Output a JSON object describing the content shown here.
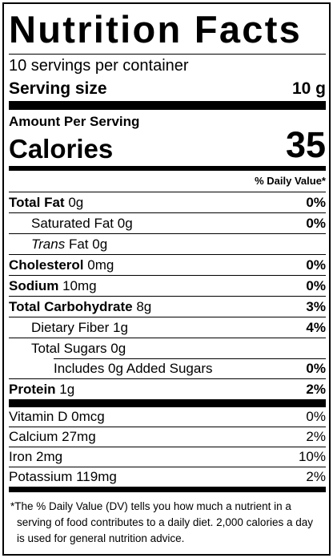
{
  "header": {
    "title": "Nutrition Facts",
    "servings": "10 servings per container",
    "serving_size_label": "Serving size",
    "serving_size": "10 g"
  },
  "calories": {
    "heading": "Amount Per Serving",
    "label": "Calories",
    "value": "35"
  },
  "dv_heading": "% Daily Value*",
  "nutrients": [
    {
      "label": "Total Fat",
      "amount": "0g",
      "dv": "0%",
      "level": 0
    },
    {
      "label": "Saturated Fat",
      "amount": "0g",
      "dv": "0%",
      "level": 1
    },
    {
      "label": "Trans",
      "label_rest": "Fat",
      "amount": "0g",
      "level": 1
    },
    {
      "label": "Cholesterol",
      "amount": "0mg",
      "dv": "0%",
      "level": 0
    },
    {
      "label": "Sodium",
      "amount": "10mg",
      "dv": "0%",
      "level": 0
    },
    {
      "label": "Total Carbohydrate",
      "amount": "8g",
      "dv": "3%",
      "level": 0
    },
    {
      "label": "Dietary Fiber",
      "amount": "1g",
      "dv": "4%",
      "level": 1
    },
    {
      "label": "Total Sugars",
      "amount": "0g",
      "level": 1
    },
    {
      "label": "Includes 0g Added Sugars",
      "dv": "0%",
      "level": 2
    },
    {
      "label": "Protein",
      "amount": "1g",
      "dv": "2%",
      "level": 0
    }
  ],
  "vitamins": [
    {
      "label": "Vitamin D",
      "amount": "0mcg",
      "dv": "0%"
    },
    {
      "label": "Calcium",
      "amount": "27mg",
      "dv": "2%"
    },
    {
      "label": "Iron",
      "amount": "2mg",
      "dv": "10%"
    },
    {
      "label": "Potassium",
      "amount": "119mg",
      "dv": "2%"
    }
  ],
  "footnote": "*The % Daily Value (DV) tells you how much a nutrient in a serving of food contributes to a daily diet. 2,000 calories a day is used for general nutrition advice."
}
